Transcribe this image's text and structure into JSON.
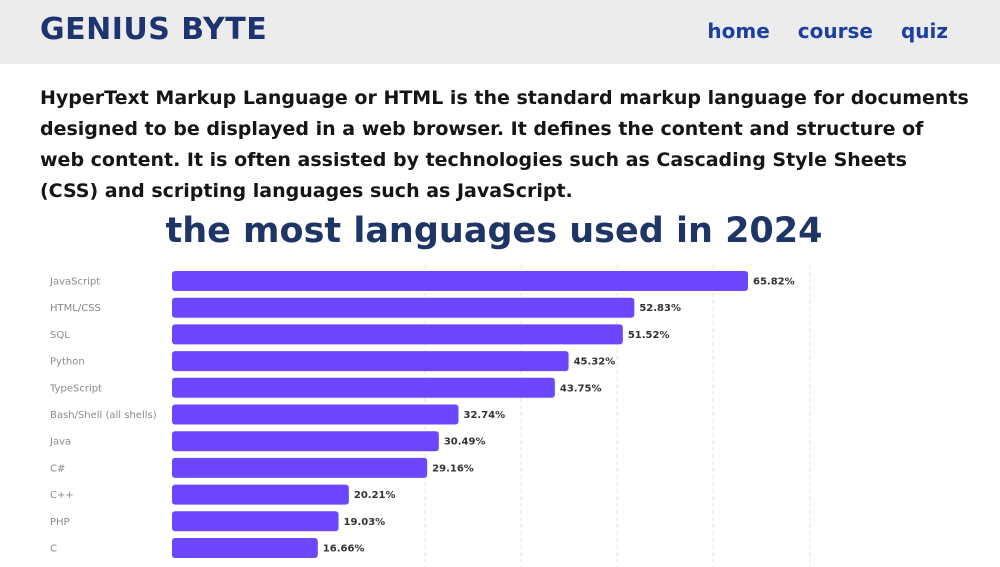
{
  "header": {
    "logo": "GENIUS BYTE",
    "nav": [
      {
        "label": "home"
      },
      {
        "label": "course"
      },
      {
        "label": "quiz"
      }
    ]
  },
  "intro": "HyperText Markup Language or HTML is the standard markup language for documents designed to be displayed in a web browser. It defines the content and structure of web content. It is often assisted by technologies such as Cascading Style Sheets (CSS) and scripting languages such as JavaScript.",
  "colors": {
    "bar": "#6c47ff",
    "logo": "#1d3471",
    "nav": "#1c40a0",
    "title": "#1f3566"
  },
  "chart_data": {
    "type": "bar",
    "orientation": "horizontal",
    "title": "the most languages used in 2024",
    "categories": [
      "JavaScript",
      "HTML/CSS",
      "SQL",
      "Python",
      "TypeScript",
      "Bash/Shell (all shells)",
      "Java",
      "C#",
      "C++",
      "PHP",
      "C"
    ],
    "values": [
      65.82,
      52.83,
      51.52,
      45.32,
      43.75,
      32.74,
      30.49,
      29.16,
      20.21,
      19.03,
      16.66
    ],
    "value_labels": [
      "65.82%",
      "52.83%",
      "51.52%",
      "45.32%",
      "43.75%",
      "32.74%",
      "30.49%",
      "29.16%",
      "20.21%",
      "19.03%",
      "16.66%"
    ],
    "unit": "%",
    "grid": true
  }
}
